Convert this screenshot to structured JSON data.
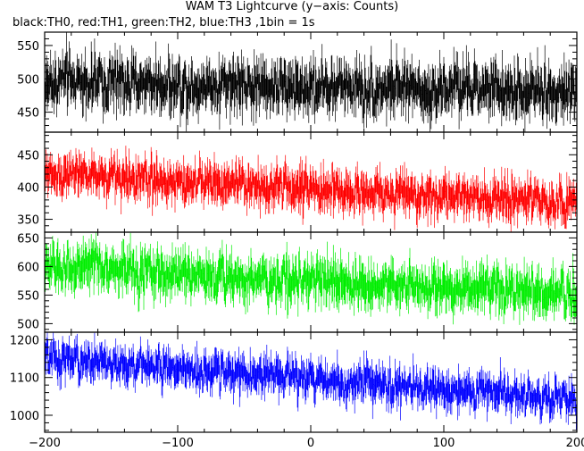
{
  "title": "WAM T3 Lightcurve (y−axis: Counts)",
  "subtitle": "black:TH0, red:TH1, green:TH2, blue:TH3 ,1bin = 1s",
  "chart_data": {
    "type": "line",
    "x": {
      "range": [
        -200,
        200
      ],
      "ticks": [
        -200,
        -100,
        0,
        100,
        200
      ],
      "minor_step": 20
    },
    "series": [
      {
        "name": "TH0",
        "color": "#000000",
        "ylim": [
          420,
          570
        ],
        "yticks": [
          450,
          500,
          550
        ],
        "minor_step": 10,
        "trend": [
          495,
          480
        ],
        "noise": 28
      },
      {
        "name": "TH1",
        "color": "#ff0000",
        "ylim": [
          330,
          485
        ],
        "yticks": [
          350,
          400,
          450
        ],
        "minor_step": 10,
        "trend": [
          420,
          375
        ],
        "noise": 22
      },
      {
        "name": "TH2",
        "color": "#00ee00",
        "ylim": [
          485,
          660
        ],
        "yticks": [
          500,
          550,
          600,
          650
        ],
        "minor_step": 10,
        "trend": [
          600,
          550
        ],
        "noise": 28
      },
      {
        "name": "TH3",
        "color": "#0000ff",
        "ylim": [
          955,
          1220
        ],
        "yticks": [
          1000,
          1100,
          1200
        ],
        "minor_step": 20,
        "trend": [
          1150,
          1040
        ],
        "noise": 35
      }
    ]
  }
}
